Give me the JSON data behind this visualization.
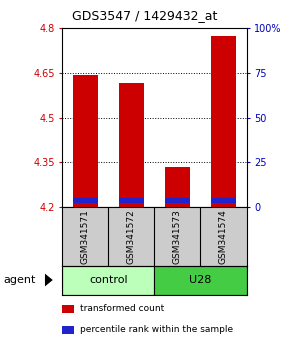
{
  "title": "GDS3547 / 1429432_at",
  "samples": [
    "GSM341571",
    "GSM341572",
    "GSM341573",
    "GSM341574"
  ],
  "bar_bottoms": [
    4.2,
    4.2,
    4.2,
    4.2
  ],
  "bar_tops": [
    4.645,
    4.615,
    4.335,
    4.775
  ],
  "blue_bottoms": [
    4.215,
    4.215,
    4.215,
    4.215
  ],
  "blue_tops": [
    4.232,
    4.232,
    4.232,
    4.232
  ],
  "ylim_left": [
    4.2,
    4.8
  ],
  "ylim_right": [
    0,
    100
  ],
  "yticks_left": [
    4.2,
    4.35,
    4.5,
    4.65,
    4.8
  ],
  "ytick_labels_left": [
    "4.2",
    "4.35",
    "4.5",
    "4.65",
    "4.8"
  ],
  "yticks_right": [
    0,
    25,
    50,
    75,
    100
  ],
  "ytick_labels_right": [
    "0",
    "25",
    "50",
    "75",
    "100%"
  ],
  "bar_color": "#cc0000",
  "blue_color": "#2222cc",
  "groups": [
    {
      "label": "control",
      "indices": [
        0,
        1
      ],
      "color": "#bbffbb"
    },
    {
      "label": "U28",
      "indices": [
        2,
        3
      ],
      "color": "#44cc44"
    }
  ],
  "agent_label": "agent",
  "legend_items": [
    {
      "color": "#cc0000",
      "label": "transformed count"
    },
    {
      "color": "#2222cc",
      "label": "percentile rank within the sample"
    }
  ],
  "bar_width": 0.55,
  "background_color": "#ffffff",
  "sample_box_color": "#cccccc",
  "title_fontsize": 9,
  "tick_fontsize": 7,
  "sample_fontsize": 6.5,
  "group_fontsize": 8,
  "legend_fontsize": 6.5,
  "agent_fontsize": 8
}
